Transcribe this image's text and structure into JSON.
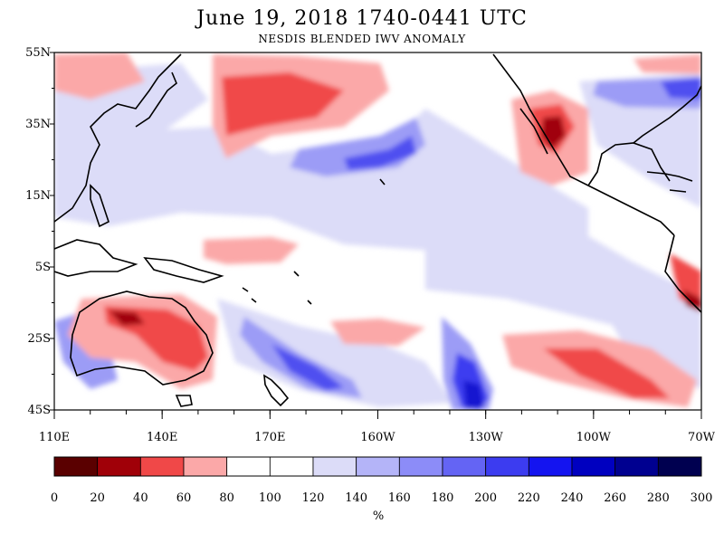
{
  "header": {
    "title": "June 19, 2018  1740-0441 UTC",
    "subtitle": "NESDIS BLENDED IWV ANOMALY"
  },
  "map": {
    "lat_labels": [
      "55N",
      "35N",
      "15N",
      "5S",
      "25S",
      "45S"
    ],
    "lon_labels": [
      "110E",
      "140E",
      "170E",
      "160W",
      "130W",
      "100W",
      "70W"
    ]
  },
  "colorbar": {
    "tick_labels": [
      "0",
      "20",
      "40",
      "60",
      "80",
      "100",
      "120",
      "140",
      "160",
      "180",
      "200",
      "220",
      "240",
      "260",
      "280",
      "300"
    ],
    "unit": "%",
    "colors": [
      "#5a0000",
      "#a00008",
      "#f04848",
      "#fba8a8",
      "#ffffff",
      "#ffffff",
      "#dcdcf8",
      "#b4b4f8",
      "#8c8cf8",
      "#6464f4",
      "#3c3cf0",
      "#1414f0",
      "#0000c0",
      "#000090",
      "#000050"
    ]
  }
}
